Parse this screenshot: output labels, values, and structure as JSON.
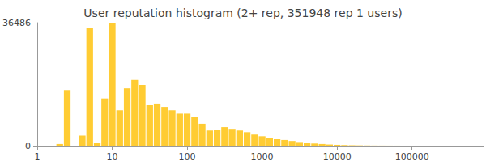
{
  "chart_data": {
    "type": "histogram",
    "title": "User reputation histogram (2+ rep, 351948 rep 1 users)",
    "bins": [
      1.778,
      2.239,
      2.818,
      3.548,
      4.467,
      5.623,
      7.079,
      8.913,
      11.22,
      14.13,
      17.78,
      22.39,
      28.18,
      35.48,
      44.67,
      56.23,
      70.79,
      89.13,
      112.2,
      141.3,
      177.8,
      223.9,
      281.8,
      354.8,
      446.7,
      562.3,
      707.9,
      891.3,
      1122,
      1413,
      1778,
      2239,
      2818,
      3548,
      4467,
      5623,
      7079,
      8913,
      11220,
      14125,
      17783,
      22387,
      28184,
      35481,
      44668,
      56234,
      70795,
      89125,
      112202,
      141254,
      177828,
      223872
    ],
    "values": [
      500,
      16500,
      0,
      3000,
      35000,
      800,
      14000,
      36486,
      10500,
      17000,
      19500,
      18000,
      12000,
      12500,
      11500,
      10500,
      9500,
      9500,
      8500,
      6500,
      4500,
      4800,
      5500,
      5000,
      4500,
      4000,
      3300,
      2800,
      2400,
      2000,
      1700,
      1400,
      1100,
      850,
      650,
      500,
      350,
      250,
      180,
      120,
      80,
      50,
      30,
      20,
      12,
      8,
      5,
      3,
      2,
      1,
      1
    ],
    "color": "#ffcc33",
    "xlim": [
      1,
      900000
    ],
    "xticks": [
      1,
      10,
      100,
      1000,
      10000,
      100000
    ],
    "ylim": [
      0,
      36486
    ],
    "yticks": [
      0,
      36486
    ],
    "log": "x",
    "grid": false
  }
}
